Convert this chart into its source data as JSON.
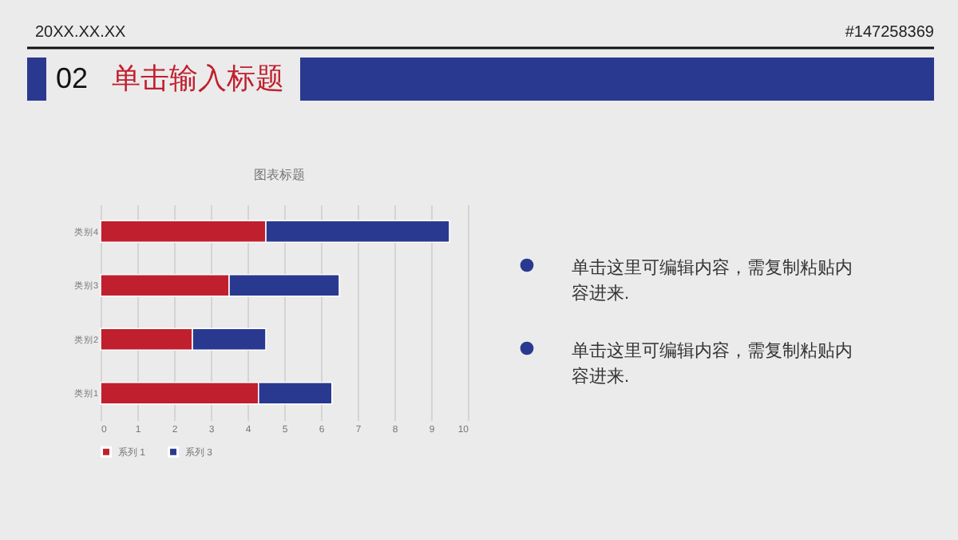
{
  "chart_data": {
    "type": "bar",
    "title": "图表标题",
    "orientation": "horizontal",
    "stacked": true,
    "categories": [
      "类别4",
      "类别3",
      "类别2",
      "类别1"
    ],
    "series": [
      {
        "name": "系列 1",
        "color": "#c0202e",
        "values": [
          4.5,
          3.5,
          2.5,
          4.3
        ]
      },
      {
        "name": "系列 3",
        "color": "#2a3990",
        "values": [
          5,
          3,
          2,
          2
        ]
      }
    ],
    "xlim": [
      0,
      10
    ],
    "xticks": [
      0,
      1,
      2,
      3,
      4,
      5,
      6,
      7,
      8,
      9,
      10
    ],
    "grid": "x",
    "legend": "bottom",
    "annotations": [
      "20XX.XX.XX",
      "#147258369",
      "02",
      "单击输入标题",
      "单击这里可编辑内容，需复制粘贴内容进来.",
      "单击这里可编辑内容，需复制粘贴内容进来."
    ]
  }
}
